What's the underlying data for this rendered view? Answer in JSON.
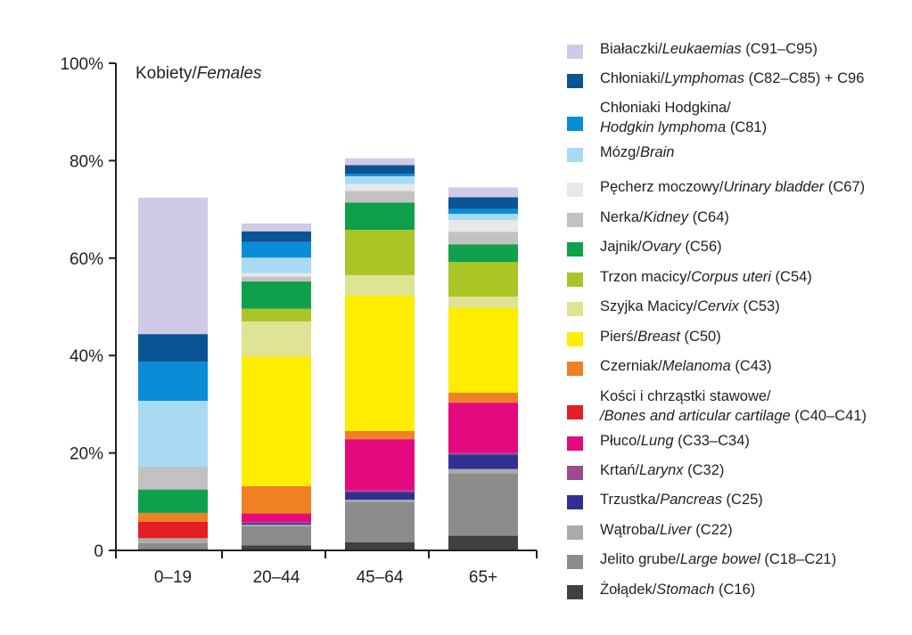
{
  "chart_data": {
    "type": "bar",
    "stacked": true,
    "title_pl": "Kobiety/",
    "title_en": "Females",
    "categories": [
      "0–19",
      "20–44",
      "45–64",
      "65+"
    ],
    "y_ticks": [
      "0",
      "20%",
      "40%",
      "60%",
      "80%",
      "100%"
    ],
    "ylim": [
      0,
      100
    ],
    "series": [
      {
        "name": "Żołądek/Stomach (C16)",
        "color": "#404040",
        "values": [
          0.3,
          1.0,
          1.7,
          3.0
        ]
      },
      {
        "name": "Jelito grube/Large bowel (C18–C21)",
        "color": "#8c8c8c",
        "values": [
          1.2,
          4.0,
          8.3,
          12.8
        ]
      },
      {
        "name": "Wątroba/Liver (C22)",
        "color": "#aaaaaa",
        "values": [
          1.0,
          0.3,
          0.4,
          0.9
        ]
      },
      {
        "name": "Trzustka/Pancreas (C25)",
        "color": "#2e3192",
        "values": [
          0.0,
          0.3,
          1.6,
          3.0
        ]
      },
      {
        "name": "Krtań/Larynx (C32)",
        "color": "#9e4b8c",
        "values": [
          0.0,
          0.2,
          0.3,
          0.3
        ]
      },
      {
        "name": "Płuco/Lung (C33–C34)",
        "color": "#e5097f",
        "values": [
          0.0,
          1.6,
          10.5,
          10.3
        ]
      },
      {
        "name": "Kości i chrząstki stawowe/Bones and articular cartilage (C40–C41)",
        "color": "#e31e24",
        "values": [
          3.4,
          0.2,
          0.1,
          0.1
        ]
      },
      {
        "name": "Czerniak/Melanoma (C43)",
        "color": "#ef8023",
        "values": [
          1.8,
          5.6,
          1.6,
          2.0
        ]
      },
      {
        "name": "Pierś/Breast (C50)",
        "color": "#ffed00",
        "values": [
          0.0,
          26.6,
          27.8,
          17.4
        ]
      },
      {
        "name": "Szyjka Macicy/Cervix (C53)",
        "color": "#dfe394",
        "values": [
          0.0,
          7.2,
          4.2,
          2.3
        ]
      },
      {
        "name": "Trzon macicy/Corpus uteri (C54)",
        "color": "#a9c526",
        "values": [
          0.0,
          2.6,
          9.3,
          7.1
        ]
      },
      {
        "name": "Jajnik/Ovary (C56)",
        "color": "#0fa04b",
        "values": [
          4.8,
          5.6,
          5.6,
          3.6
        ]
      },
      {
        "name": "Nerka/Kidney (C64)",
        "color": "#c2c2c2",
        "values": [
          4.7,
          1.0,
          2.4,
          2.6
        ]
      },
      {
        "name": "Pęcherz moczowy/Urinary bladder (C67)",
        "color": "#e8e8e8",
        "values": [
          0.0,
          0.7,
          1.4,
          2.4
        ]
      },
      {
        "name": "Mózg/Brain (C71)",
        "color": "#a8daf4",
        "values": [
          13.5,
          3.2,
          1.6,
          1.3
        ]
      },
      {
        "name": "Chłoniaki Hodgkina/Hodgkin lymphoma (C81)",
        "color": "#0a8cd6",
        "values": [
          8.0,
          3.2,
          0.5,
          1.0
        ]
      },
      {
        "name": "Chłoniaki/Lymphomas (C82–C85) + C96",
        "color": "#0b5494",
        "values": [
          5.7,
          2.2,
          1.8,
          2.4
        ]
      },
      {
        "name": "Białaczki/Leukaemias (C91–C95)",
        "color": "#cfcbe6",
        "values": [
          28.0,
          1.6,
          1.4,
          2.0
        ]
      }
    ]
  },
  "legend": [
    {
      "color": "#cfcbe6",
      "lines": [
        [
          {
            "t": "Białaczki/"
          },
          {
            "t": "Leukaemias",
            "i": true
          },
          {
            "t": " (C91–C95)"
          }
        ]
      ]
    },
    {
      "color": "#0b5494",
      "lines": [
        [
          {
            "t": "Chłoniaki/"
          },
          {
            "t": "Lymphomas",
            "i": true
          },
          {
            "t": " (C82–C85) + C96"
          }
        ]
      ]
    },
    {
      "color": "#0a8cd6",
      "lines": [
        [
          {
            "t": "Chłoniaki Hodgkina/"
          }
        ],
        [
          {
            "t": "Hodgkin lymphoma",
            "i": true
          },
          {
            "t": " (C81)"
          }
        ]
      ]
    },
    {
      "color": "#a8daf4",
      "lines": [
        [
          {
            "t": "Mózg/"
          },
          {
            "t": "Brain",
            "i": true
          }
        ]
      ]
    },
    {
      "color": "#e8e8e8",
      "lines": [
        [
          {
            "t": "Pęcherz moczowy/"
          },
          {
            "t": "Urinary bladder",
            "i": true
          },
          {
            "t": " (C67)"
          }
        ]
      ]
    },
    {
      "color": "#c2c2c2",
      "lines": [
        [
          {
            "t": "Nerka/"
          },
          {
            "t": "Kidney",
            "i": true
          },
          {
            "t": " (C64)"
          }
        ]
      ]
    },
    {
      "color": "#0fa04b",
      "lines": [
        [
          {
            "t": "Jajnik/"
          },
          {
            "t": "Ovary",
            "i": true
          },
          {
            "t": " (C56)"
          }
        ]
      ]
    },
    {
      "color": "#a9c526",
      "lines": [
        [
          {
            "t": "Trzon macicy/"
          },
          {
            "t": "Corpus uteri",
            "i": true
          },
          {
            "t": " (C54)"
          }
        ]
      ]
    },
    {
      "color": "#dfe394",
      "lines": [
        [
          {
            "t": "Szyjka Macicy/"
          },
          {
            "t": "Cervix",
            "i": true
          },
          {
            "t": " (C53)"
          }
        ]
      ]
    },
    {
      "color": "#ffed00",
      "lines": [
        [
          {
            "t": "Pierś/"
          },
          {
            "t": "Breast",
            "i": true
          },
          {
            "t": " (C50)"
          }
        ]
      ]
    },
    {
      "color": "#ef8023",
      "lines": [
        [
          {
            "t": "Czerniak/"
          },
          {
            "t": "Melanoma",
            "i": true
          },
          {
            "t": " (C43)"
          }
        ]
      ]
    },
    {
      "color": "#e31e24",
      "lines": [
        [
          {
            "t": "Kości i chrząstki stawowe/"
          }
        ],
        [
          {
            "t": "/Bones and articular cartilage",
            "i": true
          },
          {
            "t": " (C40–C41)"
          }
        ]
      ]
    },
    {
      "color": "#e5097f",
      "lines": [
        [
          {
            "t": "Płuco/"
          },
          {
            "t": "Lung",
            "i": true
          },
          {
            "t": " (C33–C34)"
          }
        ]
      ]
    },
    {
      "color": "#9e4b8c",
      "lines": [
        [
          {
            "t": "Krtań/"
          },
          {
            "t": "Larynx",
            "i": true
          },
          {
            "t": " (C32)"
          }
        ]
      ]
    },
    {
      "color": "#2e3192",
      "lines": [
        [
          {
            "t": "Trzustka/"
          },
          {
            "t": "Pancreas",
            "i": true
          },
          {
            "t": " (C25)"
          }
        ]
      ]
    },
    {
      "color": "#aaaaaa",
      "lines": [
        [
          {
            "t": "Wątroba/"
          },
          {
            "t": "Liver",
            "i": true
          },
          {
            "t": " (C22)"
          }
        ]
      ]
    },
    {
      "color": "#8c8c8c",
      "lines": [
        [
          {
            "t": "Jelito grube/"
          },
          {
            "t": "Large bowel",
            "i": true
          },
          {
            "t": "  (C18–C21)"
          }
        ]
      ]
    },
    {
      "color": "#404040",
      "lines": [
        [
          {
            "t": "Żołądek/"
          },
          {
            "t": "Stomach",
            "i": true
          },
          {
            "t": " (C16)"
          }
        ]
      ]
    }
  ]
}
